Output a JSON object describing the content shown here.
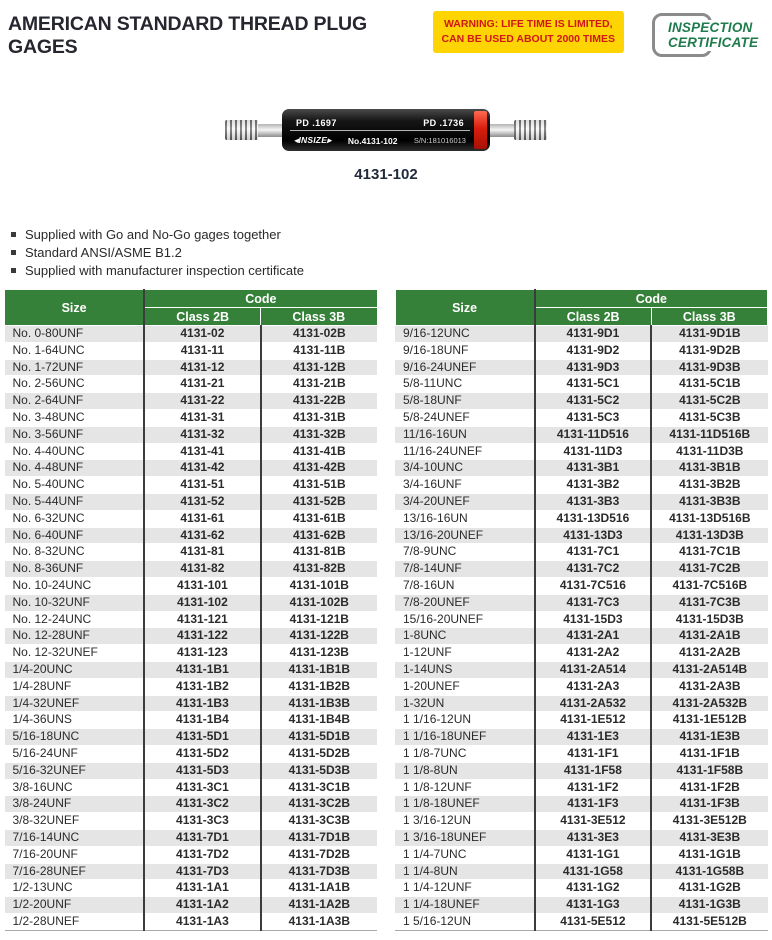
{
  "header": {
    "title": "AMERICAN STANDARD THREAD PLUG GAGES",
    "warning_line1": "WARNING: LIFE TIME IS LIMITED,",
    "warning_line2": "CAN BE USED ABOUT 2000 TIMES",
    "certificate_line1": "INSPECTION",
    "certificate_line2": "CERTIFICATE"
  },
  "product": {
    "caption": "4131-102",
    "pd_left": "PD .1697",
    "pd_right": "PD .1736",
    "brand": "◂INSIZE▸",
    "model": "No.4131-102",
    "serial": "S/N:181016013"
  },
  "features": {
    "item1": "Supplied with Go and No-Go gages together",
    "item2": "Standard ANSI/ASME B1.2",
    "item3": "Supplied with manufacturer inspection certificate"
  },
  "table": {
    "size_header": "Size",
    "code_header": "Code",
    "class2b_header": "Class 2B",
    "class3b_header": "Class 3B"
  },
  "left_table_rows": [
    [
      "No. 0-80UNF",
      "4131-02",
      "4131-02B"
    ],
    [
      "No. 1-64UNC",
      "4131-11",
      "4131-11B"
    ],
    [
      "No. 1-72UNF",
      "4131-12",
      "4131-12B"
    ],
    [
      "No. 2-56UNC",
      "4131-21",
      "4131-21B"
    ],
    [
      "No. 2-64UNF",
      "4131-22",
      "4131-22B"
    ],
    [
      "No. 3-48UNC",
      "4131-31",
      "4131-31B"
    ],
    [
      "No. 3-56UNF",
      "4131-32",
      "4131-32B"
    ],
    [
      "No. 4-40UNC",
      "4131-41",
      "4131-41B"
    ],
    [
      "No. 4-48UNF",
      "4131-42",
      "4131-42B"
    ],
    [
      "No. 5-40UNC",
      "4131-51",
      "4131-51B"
    ],
    [
      "No. 5-44UNF",
      "4131-52",
      "4131-52B"
    ],
    [
      "No. 6-32UNC",
      "4131-61",
      "4131-61B"
    ],
    [
      "No. 6-40UNF",
      "4131-62",
      "4131-62B"
    ],
    [
      "No. 8-32UNC",
      "4131-81",
      "4131-81B"
    ],
    [
      "No. 8-36UNF",
      "4131-82",
      "4131-82B"
    ],
    [
      "No. 10-24UNC",
      "4131-101",
      "4131-101B"
    ],
    [
      "No. 10-32UNF",
      "4131-102",
      "4131-102B"
    ],
    [
      "No. 12-24UNC",
      "4131-121",
      "4131-121B"
    ],
    [
      "No. 12-28UNF",
      "4131-122",
      "4131-122B"
    ],
    [
      "No. 12-32UNEF",
      "4131-123",
      "4131-123B"
    ],
    [
      "1/4-20UNC",
      "4131-1B1",
      "4131-1B1B"
    ],
    [
      "1/4-28UNF",
      "4131-1B2",
      "4131-1B2B"
    ],
    [
      "1/4-32UNEF",
      "4131-1B3",
      "4131-1B3B"
    ],
    [
      "1/4-36UNS",
      "4131-1B4",
      "4131-1B4B"
    ],
    [
      "5/16-18UNC",
      "4131-5D1",
      "4131-5D1B"
    ],
    [
      "5/16-24UNF",
      "4131-5D2",
      "4131-5D2B"
    ],
    [
      "5/16-32UNEF",
      "4131-5D3",
      "4131-5D3B"
    ],
    [
      "3/8-16UNC",
      "4131-3C1",
      "4131-3C1B"
    ],
    [
      "3/8-24UNF",
      "4131-3C2",
      "4131-3C2B"
    ],
    [
      "3/8-32UNEF",
      "4131-3C3",
      "4131-3C3B"
    ],
    [
      "7/16-14UNC",
      "4131-7D1",
      "4131-7D1B"
    ],
    [
      "7/16-20UNF",
      "4131-7D2",
      "4131-7D2B"
    ],
    [
      "7/16-28UNEF",
      "4131-7D3",
      "4131-7D3B"
    ],
    [
      "1/2-13UNC",
      "4131-1A1",
      "4131-1A1B"
    ],
    [
      "1/2-20UNF",
      "4131-1A2",
      "4131-1A2B"
    ],
    [
      "1/2-28UNEF",
      "4131-1A3",
      "4131-1A3B"
    ]
  ],
  "right_table_rows": [
    [
      "9/16-12UNC",
      "4131-9D1",
      "4131-9D1B"
    ],
    [
      "9/16-18UNF",
      "4131-9D2",
      "4131-9D2B"
    ],
    [
      "9/16-24UNEF",
      "4131-9D3",
      "4131-9D3B"
    ],
    [
      "5/8-11UNC",
      "4131-5C1",
      "4131-5C1B"
    ],
    [
      "5/8-18UNF",
      "4131-5C2",
      "4131-5C2B"
    ],
    [
      "5/8-24UNEF",
      "4131-5C3",
      "4131-5C3B"
    ],
    [
      "11/16-16UN",
      "4131-11D516",
      "4131-11D516B"
    ],
    [
      "11/16-24UNEF",
      "4131-11D3",
      "4131-11D3B"
    ],
    [
      "3/4-10UNC",
      "4131-3B1",
      "4131-3B1B"
    ],
    [
      "3/4-16UNF",
      "4131-3B2",
      "4131-3B2B"
    ],
    [
      "3/4-20UNEF",
      "4131-3B3",
      "4131-3B3B"
    ],
    [
      "13/16-16UN",
      "4131-13D516",
      "4131-13D516B"
    ],
    [
      "13/16-20UNEF",
      "4131-13D3",
      "4131-13D3B"
    ],
    [
      "7/8-9UNC",
      "4131-7C1",
      "4131-7C1B"
    ],
    [
      "7/8-14UNF",
      "4131-7C2",
      "4131-7C2B"
    ],
    [
      "7/8-16UN",
      "4131-7C516",
      "4131-7C516B"
    ],
    [
      "7/8-20UNEF",
      "4131-7C3",
      "4131-7C3B"
    ],
    [
      "15/16-20UNEF",
      "4131-15D3",
      "4131-15D3B"
    ],
    [
      "1-8UNC",
      "4131-2A1",
      "4131-2A1B"
    ],
    [
      "1-12UNF",
      "4131-2A2",
      "4131-2A2B"
    ],
    [
      "1-14UNS",
      "4131-2A514",
      "4131-2A514B"
    ],
    [
      "1-20UNEF",
      "4131-2A3",
      "4131-2A3B"
    ],
    [
      "1-32UN",
      "4131-2A532",
      "4131-2A532B"
    ],
    [
      "1 1/16-12UN",
      "4131-1E512",
      "4131-1E512B"
    ],
    [
      "1 1/16-18UNEF",
      "4131-1E3",
      "4131-1E3B"
    ],
    [
      "1 1/8-7UNC",
      "4131-1F1",
      "4131-1F1B"
    ],
    [
      "1 1/8-8UN",
      "4131-1F58",
      "4131-1F58B"
    ],
    [
      "1 1/8-12UNF",
      "4131-1F2",
      "4131-1F2B"
    ],
    [
      "1 1/8-18UNEF",
      "4131-1F3",
      "4131-1F3B"
    ],
    [
      "1 3/16-12UN",
      "4131-3E512",
      "4131-3E512B"
    ],
    [
      "1 3/16-18UNEF",
      "4131-3E3",
      "4131-3E3B"
    ],
    [
      "1 1/4-7UNC",
      "4131-1G1",
      "4131-1G1B"
    ],
    [
      "1 1/4-8UN",
      "4131-1G58",
      "4131-1G58B"
    ],
    [
      "1 1/4-12UNF",
      "4131-1G2",
      "4131-1G2B"
    ],
    [
      "1 1/4-18UNEF",
      "4131-1G3",
      "4131-1G3B"
    ],
    [
      "1 5/16-12UN",
      "4131-5E512",
      "4131-5E512B"
    ]
  ],
  "colors": {
    "header_green": "#36813a",
    "alt_row": "#e5e5e5",
    "warning_bg": "#ffd403",
    "warning_text": "#cf1717",
    "cert_green": "#1e7b4b",
    "red_band": "#d81e0e"
  }
}
